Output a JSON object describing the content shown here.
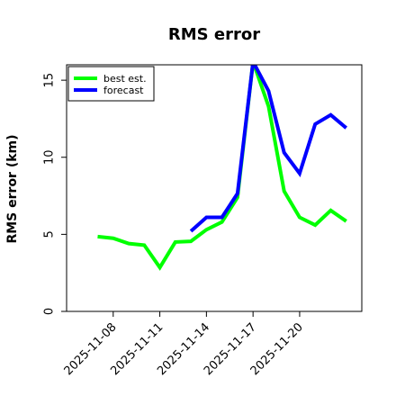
{
  "chart_data": {
    "type": "line",
    "title": "RMS error",
    "ylabel": "RMS error (km)",
    "xlabel": "",
    "ylim": [
      0,
      16
    ],
    "yticks": [
      0,
      5,
      10,
      15
    ],
    "xlim": [
      "2025-11-05",
      "2025-11-24"
    ],
    "xtick_labels": [
      "2025-11-08",
      "2025-11-11",
      "2025-11-14",
      "2025-11-17",
      "2025-11-20"
    ],
    "grid": false,
    "legend_position": "top-left",
    "series": [
      {
        "name": "best est.",
        "color": "#00ff00",
        "points": [
          {
            "x": "2025-11-07",
            "y": 4.85
          },
          {
            "x": "2025-11-08",
            "y": 4.75
          },
          {
            "x": "2025-11-09",
            "y": 4.4
          },
          {
            "x": "2025-11-10",
            "y": 4.3
          },
          {
            "x": "2025-11-11",
            "y": 2.85
          },
          {
            "x": "2025-11-12",
            "y": 4.5
          },
          {
            "x": "2025-11-13",
            "y": 4.55
          },
          {
            "x": "2025-11-14",
            "y": 5.3
          },
          {
            "x": "2025-11-15",
            "y": 5.8
          },
          {
            "x": "2025-11-16",
            "y": 7.4
          },
          {
            "x": "2025-11-17",
            "y": 16.2
          },
          {
            "x": "2025-11-18",
            "y": 13.3
          },
          {
            "x": "2025-11-19",
            "y": 7.8
          },
          {
            "x": "2025-11-20",
            "y": 6.1
          },
          {
            "x": "2025-11-21",
            "y": 5.6
          },
          {
            "x": "2025-11-22",
            "y": 6.55
          },
          {
            "x": "2025-11-23",
            "y": 5.85
          }
        ]
      },
      {
        "name": "forecast",
        "color": "#0000ff",
        "points": [
          {
            "x": "2025-11-13",
            "y": 5.2
          },
          {
            "x": "2025-11-14",
            "y": 6.1
          },
          {
            "x": "2025-11-15",
            "y": 6.1
          },
          {
            "x": "2025-11-16",
            "y": 7.65
          },
          {
            "x": "2025-11-17",
            "y": 16.2
          },
          {
            "x": "2025-11-18",
            "y": 14.3
          },
          {
            "x": "2025-11-19",
            "y": 10.3
          },
          {
            "x": "2025-11-20",
            "y": 8.95
          },
          {
            "x": "2025-11-21",
            "y": 12.15
          },
          {
            "x": "2025-11-22",
            "y": 12.75
          },
          {
            "x": "2025-11-23",
            "y": 11.9
          }
        ]
      }
    ]
  }
}
